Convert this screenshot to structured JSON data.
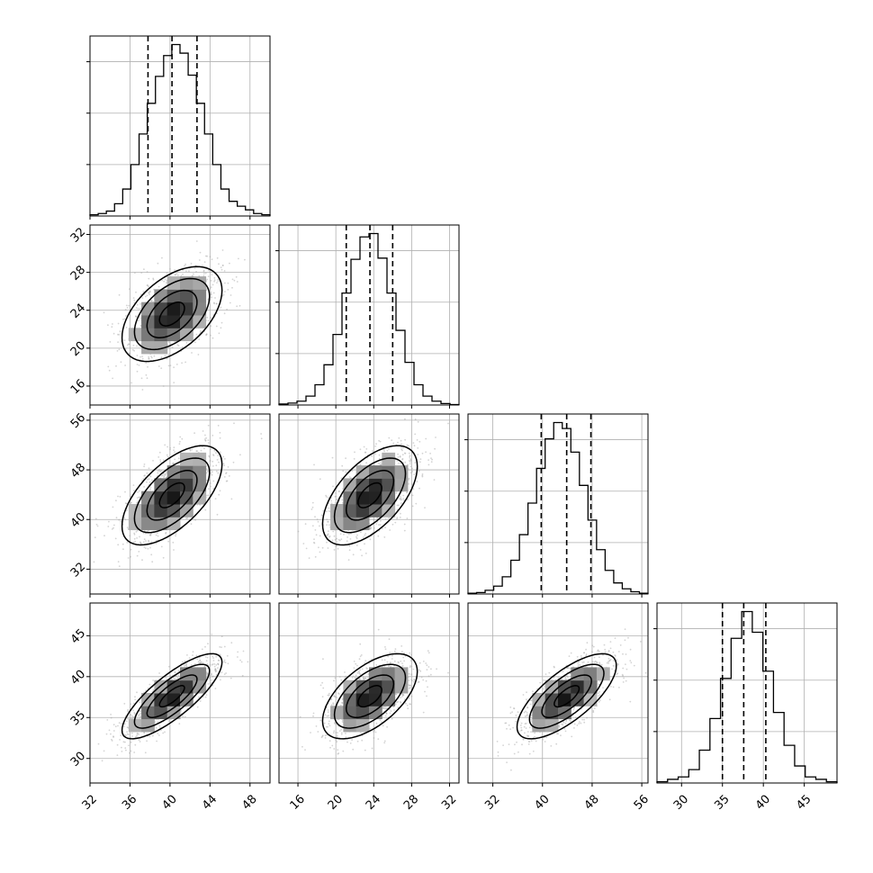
{
  "chart_data": {
    "type": "corner",
    "grid": true,
    "parameters": [
      {
        "range": [
          32,
          50
        ],
        "ticks": [
          32,
          36,
          40,
          44,
          48
        ],
        "median": 40.2,
        "q16": 37.8,
        "q84": 42.7,
        "sd": 2.5,
        "hist": [
          0.5,
          1.0,
          2.0,
          5.0,
          11.0,
          21.0,
          33.5,
          46.0,
          57.0,
          65.5,
          70.0,
          66.5,
          57.5,
          46.0,
          33.5,
          21.0,
          11.0,
          6.0,
          4.0,
          2.5,
          1.0,
          0.5
        ]
      },
      {
        "range": [
          14,
          33
        ],
        "ticks": [
          16,
          20,
          24,
          28,
          32
        ],
        "median": 23.6,
        "q16": 21.1,
        "q84": 26.0,
        "sd": 2.5,
        "hist": [
          0.4,
          0.8,
          1.6,
          3.7,
          8.4,
          16.7,
          29.3,
          46.5,
          60.5,
          69.8,
          71.2,
          61.0,
          46.5,
          31.0,
          17.7,
          8.4,
          3.7,
          1.6,
          0.6,
          0.2
        ]
      },
      {
        "range": [
          28,
          57
        ],
        "ticks": [
          32,
          40,
          48,
          56
        ],
        "median": 43.9,
        "q16": 39.8,
        "q84": 47.8,
        "sd": 4.0,
        "hist": [
          0.3,
          0.6,
          1.5,
          3.2,
          7.0,
          13.7,
          24.1,
          36.9,
          51.0,
          63.0,
          69.6,
          67.2,
          57.6,
          44.1,
          30.0,
          18.0,
          9.6,
          4.5,
          2.1,
          0.9,
          0.3
        ]
      },
      {
        "range": [
          27,
          49
        ],
        "ticks": [
          30,
          35,
          40,
          45
        ],
        "median": 37.6,
        "q16": 35.0,
        "q84": 40.3,
        "sd": 2.6,
        "hist": [
          0.5,
          1.5,
          2.5,
          5.5,
          13.5,
          26.5,
          43.0,
          59.5,
          70.5,
          62.0,
          46.0,
          29.0,
          15.5,
          7.0,
          2.5,
          1.5,
          0.5
        ]
      }
    ],
    "correlations": [
      {
        "row": 1,
        "col": 0,
        "rho": 0.5
      },
      {
        "row": 2,
        "col": 0,
        "rho": 0.62
      },
      {
        "row": 2,
        "col": 1,
        "rho": 0.58
      },
      {
        "row": 3,
        "col": 0,
        "rho": 0.8
      },
      {
        "row": 3,
        "col": 1,
        "rho": 0.58
      },
      {
        "row": 3,
        "col": 2,
        "rho": 0.72
      }
    ]
  }
}
